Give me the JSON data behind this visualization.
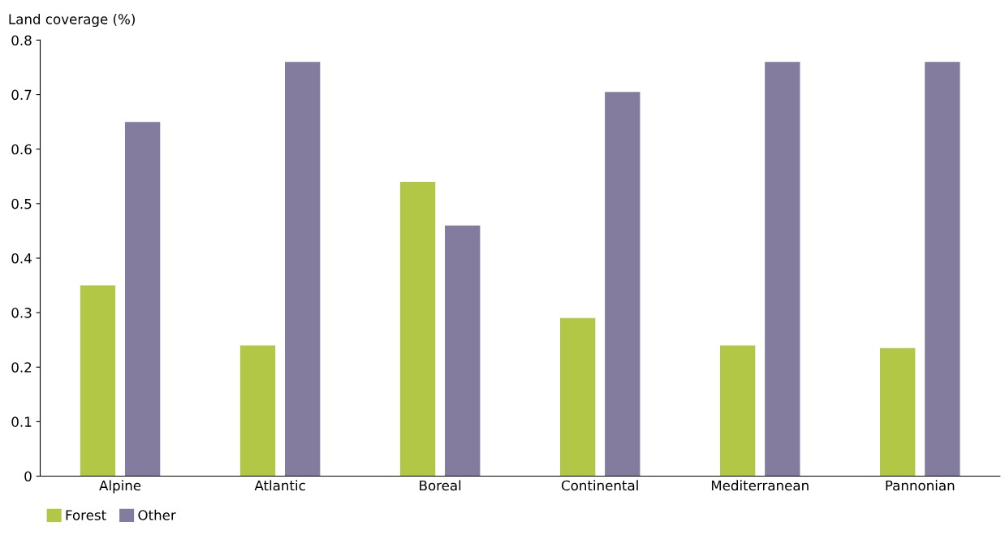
{
  "chart_data": {
    "type": "bar",
    "ylabel": "Land coverage (%)",
    "categories": [
      "Alpine",
      "Atlantic",
      "Boreal",
      "Continental",
      "Mediterranean",
      "Pannonian"
    ],
    "series": [
      {
        "name": "Forest",
        "color": "#b2c746",
        "values": [
          0.35,
          0.24,
          0.54,
          0.29,
          0.24,
          0.235
        ]
      },
      {
        "name": "Other",
        "color": "#837c9e",
        "values": [
          0.65,
          0.76,
          0.46,
          0.705,
          0.76,
          0.76
        ]
      }
    ],
    "ylim": [
      0,
      0.8
    ],
    "yticks": [
      0,
      0.1,
      0.2,
      0.3,
      0.4,
      0.5,
      0.6,
      0.7,
      0.8
    ],
    "grid": false,
    "legend": "bottom left"
  }
}
